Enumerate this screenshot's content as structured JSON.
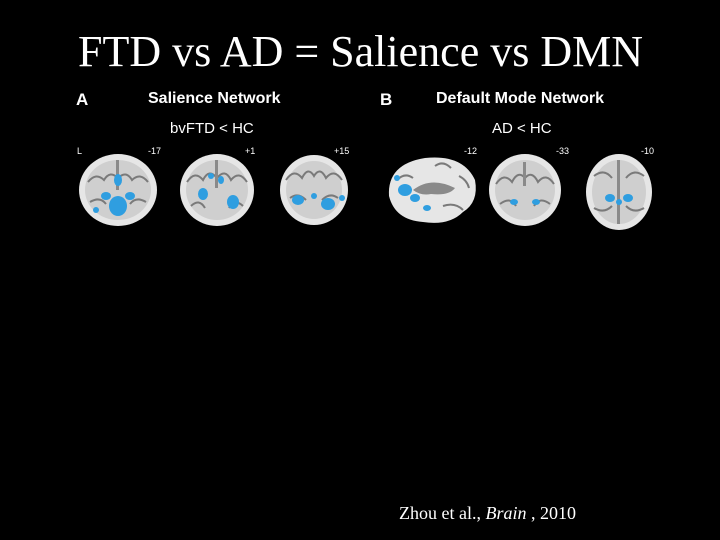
{
  "slide": {
    "title": "FTD vs AD = Salience vs DMN",
    "citation": {
      "authors": "Zhou et al.,",
      "journal": "Brain",
      "year": ", 2010"
    }
  },
  "panels": [
    {
      "letter": "A",
      "title": "Salience Network",
      "contrast": "bvFTD < HC",
      "side_label": "L",
      "slice_labels": [
        "-17",
        "+1",
        "+15"
      ]
    },
    {
      "letter": "B",
      "title": "Default Mode Network",
      "contrast": "AD < HC",
      "slice_labels": [
        "-12",
        "-33",
        "-10"
      ]
    }
  ],
  "colors": {
    "background": "#000000",
    "activation": "#2f9ee0",
    "brain_tissue": "#e6e6e6"
  }
}
